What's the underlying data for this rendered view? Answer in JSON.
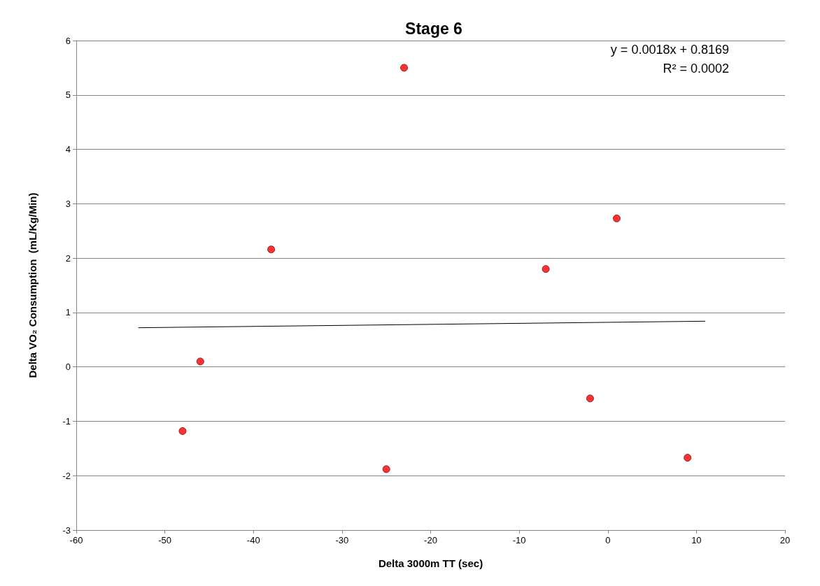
{
  "chart_data": {
    "type": "scatter",
    "title": "Stage 6",
    "xlabel": "Delta 3000m TT (sec)",
    "ylabel": "Delta VO₂ Consumption  (mL/Kg/Min)",
    "xlim": [
      -60,
      20
    ],
    "xticks": [
      -60,
      -50,
      -40,
      -30,
      -20,
      -10,
      0,
      10,
      20
    ],
    "ylim": [
      -3,
      6
    ],
    "yticks": [
      -3,
      -2,
      -1,
      0,
      1,
      2,
      3,
      4,
      5,
      6
    ],
    "grid": "y",
    "marker": "circle",
    "annotations": [
      "y = 0.0018x + 0.8169",
      "R² = 0.0002"
    ],
    "series": [
      {
        "color": "#ff0000",
        "x": [
          -48,
          -46,
          -38,
          -25,
          -23,
          -7,
          -2,
          1,
          9
        ],
        "values": [
          -1.18,
          0.1,
          2.16,
          -1.88,
          5.5,
          1.8,
          -0.58,
          2.73,
          -1.67
        ]
      },
      {
        "type": "line",
        "color": "#000000",
        "marker": "none",
        "line_style": "solid",
        "x": [
          -53,
          11
        ],
        "values": [
          0.72,
          0.84
        ]
      }
    ]
  }
}
